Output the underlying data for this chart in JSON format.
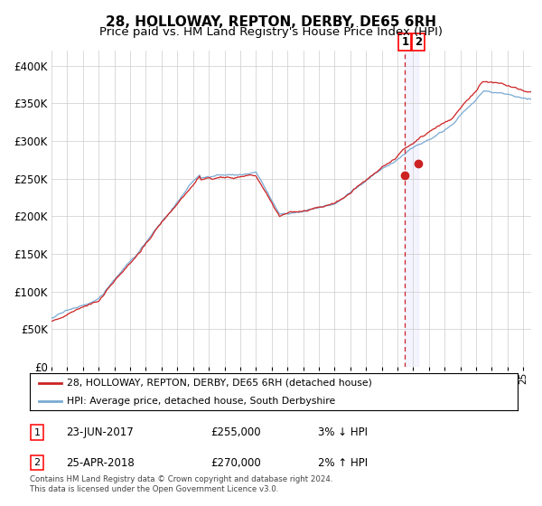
{
  "title": "28, HOLLOWAY, REPTON, DERBY, DE65 6RH",
  "subtitle": "Price paid vs. HM Land Registry's House Price Index (HPI)",
  "ylim": [
    0,
    420000
  ],
  "yticks": [
    0,
    50000,
    100000,
    150000,
    200000,
    250000,
    300000,
    350000,
    400000
  ],
  "ytick_labels": [
    "£0",
    "£50K",
    "£100K",
    "£150K",
    "£200K",
    "£250K",
    "£300K",
    "£350K",
    "£400K"
  ],
  "hpi_color": "#7aaad4",
  "price_color": "#cc2222",
  "marker_color": "#cc2222",
  "transaction1_date": 2017.48,
  "transaction1_price": 255000,
  "transaction2_date": 2018.31,
  "transaction2_price": 270000,
  "legend_entries": [
    "28, HOLLOWAY, REPTON, DERBY, DE65 6RH (detached house)",
    "HPI: Average price, detached house, South Derbyshire"
  ],
  "annotation_rows": [
    [
      "1",
      "23-JUN-2017",
      "£255,000",
      "3% ↓ HPI"
    ],
    [
      "2",
      "25-APR-2018",
      "£270,000",
      "2% ↑ HPI"
    ]
  ],
  "footer": "Contains HM Land Registry data © Crown copyright and database right 2024.\nThis data is licensed under the Open Government Licence v3.0.",
  "background_color": "#ffffff",
  "grid_color": "#cccccc"
}
